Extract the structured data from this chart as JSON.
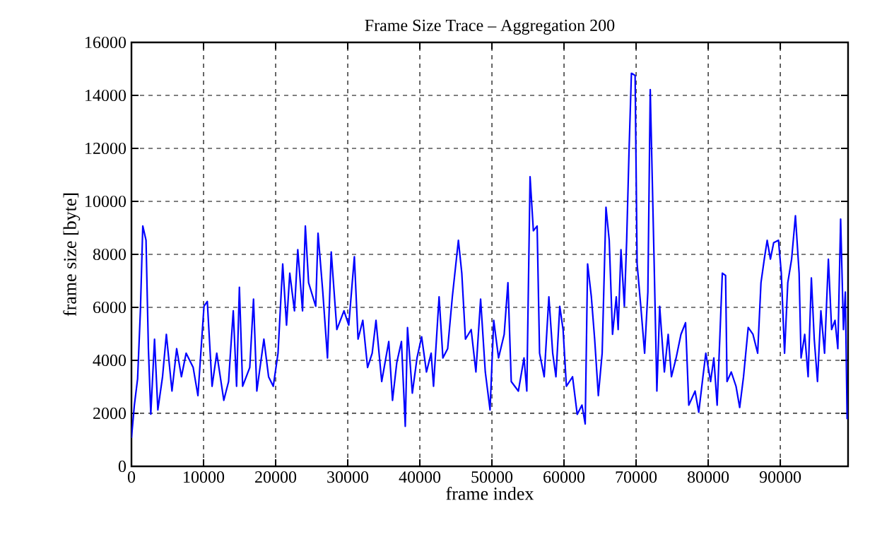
{
  "chart_data": {
    "type": "line",
    "title": "Frame Size Trace – Aggregation 200",
    "xlabel": "frame index",
    "ylabel": "frame size [byte]",
    "xlim": [
      0,
      99400
    ],
    "ylim": [
      0,
      16000
    ],
    "xticks": [
      0,
      10000,
      20000,
      30000,
      40000,
      50000,
      60000,
      70000,
      80000,
      90000
    ],
    "yticks": [
      0,
      2000,
      4000,
      6000,
      8000,
      10000,
      12000,
      14000,
      16000
    ],
    "grid": true,
    "series": [
      {
        "color": "#0000ff",
        "x": [
          0,
          400,
          850,
          1240,
          1570,
          2020,
          2350,
          2680,
          3200,
          3660,
          4310,
          4840,
          5620,
          6270,
          6930,
          7580,
          8560,
          9220,
          10060,
          10520,
          11180,
          11830,
          12810,
          13470,
          14120,
          14580,
          14970,
          15420,
          16410,
          16930,
          17390,
          18370,
          19020,
          19670,
          20330,
          20980,
          21510,
          21960,
          22610,
          23070,
          23730,
          24120,
          24570,
          25560,
          25880,
          26540,
          27190,
          27710,
          28490,
          29480,
          30140,
          30920,
          31430,
          32090,
          32750,
          33390,
          33920,
          34710,
          35690,
          36210,
          36800,
          37450,
          37980,
          38290,
          38960,
          39610,
          40250,
          40920,
          41570,
          41900,
          42670,
          43200,
          43860,
          44510,
          45350,
          45820,
          46330,
          47120,
          47780,
          48430,
          49080,
          49740,
          50250,
          50920,
          51700,
          52220,
          52680,
          53670,
          54450,
          54840,
          55290,
          55750,
          56270,
          56610,
          57250,
          57900,
          58430,
          58880,
          59410,
          59870,
          60330,
          61180,
          61830,
          62490,
          62940,
          63270,
          63790,
          64250,
          64760,
          65290,
          65820,
          66270,
          66730,
          67250,
          67510,
          67900,
          68370,
          68690,
          69020,
          69350,
          69860,
          70140,
          70650,
          71180,
          71630,
          71960,
          72490,
          72880,
          73270,
          73920,
          74450,
          74900,
          75550,
          76220,
          76860,
          77310,
          78180,
          78690,
          79270,
          79670,
          80330,
          80780,
          81240,
          81630,
          81960,
          82410,
          82610,
          83200,
          83860,
          84370,
          84900,
          85550,
          86210,
          86860,
          87320,
          87780,
          88180,
          88630,
          89080,
          89750,
          90140,
          90590,
          91040,
          91570,
          92100,
          92610,
          92880,
          93390,
          93860,
          94310,
          94710,
          95160,
          95630,
          96140,
          96670,
          97120,
          97590,
          97980,
          98370,
          98760,
          99020,
          99270
        ],
        "values": [
          1070,
          2300,
          3300,
          5870,
          9070,
          8530,
          4440,
          1970,
          4800,
          2130,
          3380,
          4980,
          2840,
          4440,
          3380,
          4270,
          3730,
          2670,
          6040,
          6220,
          3020,
          4270,
          2490,
          3200,
          5870,
          3020,
          6760,
          3020,
          3730,
          6310,
          2840,
          4800,
          3380,
          3020,
          4270,
          7640,
          5330,
          7290,
          5870,
          8180,
          5870,
          9070,
          6930,
          6040,
          8800,
          6580,
          4090,
          8090,
          5160,
          5870,
          5330,
          7910,
          4800,
          5510,
          3730,
          4270,
          5510,
          3200,
          4710,
          2490,
          3910,
          4710,
          1510,
          5240,
          2760,
          4090,
          4890,
          3560,
          4270,
          3020,
          6400,
          4090,
          4440,
          6400,
          8530,
          7290,
          4800,
          5160,
          3560,
          6310,
          3560,
          2130,
          5510,
          4090,
          4980,
          6930,
          3200,
          2840,
          4090,
          2840,
          10930,
          8890,
          9070,
          4270,
          3380,
          6400,
          4270,
          3380,
          6040,
          5160,
          3020,
          3380,
          1960,
          2310,
          1600,
          7640,
          6400,
          4800,
          2670,
          4270,
          9780,
          8530,
          4980,
          6400,
          5160,
          8180,
          6040,
          8530,
          11910,
          14840,
          14750,
          7640,
          6040,
          4270,
          6580,
          14220,
          7820,
          2840,
          6040,
          3560,
          4980,
          3380,
          4090,
          4980,
          5420,
          2310,
          2840,
          2040,
          3380,
          4270,
          3200,
          4090,
          2310,
          4980,
          7290,
          7200,
          3200,
          3560,
          3020,
          2220,
          3380,
          5240,
          4980,
          4270,
          6930,
          7820,
          8530,
          7820,
          8440,
          8530,
          7290,
          4270,
          6930,
          7820,
          9460,
          7290,
          4090,
          4980,
          3380,
          7110,
          4800,
          3200,
          5870,
          4270,
          7820,
          5160,
          5510,
          4440,
          9330,
          5160,
          6580,
          1780
        ]
      }
    ]
  }
}
